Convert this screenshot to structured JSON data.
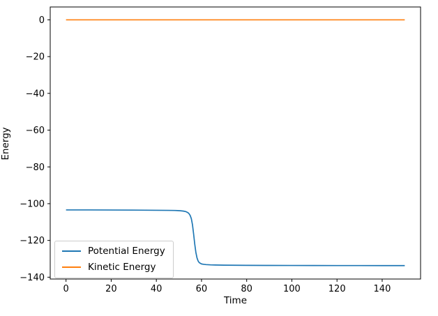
{
  "chart_data": {
    "type": "line",
    "title": "",
    "xlabel": "Time",
    "ylabel": "Energy",
    "xlim": [
      -7,
      157
    ],
    "ylim": [
      -141,
      7
    ],
    "grid": false,
    "legend_position": "lower left",
    "xticks": [
      {
        "value": 0,
        "label": "0"
      },
      {
        "value": 20,
        "label": "20"
      },
      {
        "value": 40,
        "label": "40"
      },
      {
        "value": 60,
        "label": "60"
      },
      {
        "value": 80,
        "label": "80"
      },
      {
        "value": 100,
        "label": "100"
      },
      {
        "value": 120,
        "label": "120"
      },
      {
        "value": 140,
        "label": "140"
      }
    ],
    "yticks": [
      {
        "value": 0,
        "label": "0"
      },
      {
        "value": -20,
        "label": "−20"
      },
      {
        "value": -40,
        "label": "−40"
      },
      {
        "value": -60,
        "label": "−60"
      },
      {
        "value": -80,
        "label": "−80"
      },
      {
        "value": -100,
        "label": "−100"
      },
      {
        "value": -120,
        "label": "−120"
      },
      {
        "value": -140,
        "label": "−140"
      }
    ],
    "series": [
      {
        "name": "Potential Energy",
        "color": "#1f77b4",
        "points": [
          [
            0,
            -103.4
          ],
          [
            10,
            -103.4
          ],
          [
            20,
            -103.45
          ],
          [
            30,
            -103.5
          ],
          [
            40,
            -103.6
          ],
          [
            45,
            -103.65
          ],
          [
            48,
            -103.7
          ],
          [
            50,
            -103.8
          ],
          [
            51,
            -103.9
          ],
          [
            52,
            -104.05
          ],
          [
            53,
            -104.3
          ],
          [
            54,
            -104.9
          ],
          [
            54.5,
            -105.5
          ],
          [
            55,
            -106.5
          ],
          [
            55.5,
            -108.2
          ],
          [
            56,
            -111.5
          ],
          [
            56.5,
            -116.5
          ],
          [
            57,
            -122
          ],
          [
            57.5,
            -126.5
          ],
          [
            58,
            -129.5
          ],
          [
            58.5,
            -131.2
          ],
          [
            59,
            -132.1
          ],
          [
            60,
            -132.8
          ],
          [
            61,
            -133.0
          ],
          [
            62,
            -133.15
          ],
          [
            64,
            -133.3
          ],
          [
            66,
            -133.35
          ],
          [
            70,
            -133.45
          ],
          [
            75,
            -133.5
          ],
          [
            80,
            -133.55
          ],
          [
            90,
            -133.6
          ],
          [
            100,
            -133.62
          ],
          [
            110,
            -133.65
          ],
          [
            120,
            -133.67
          ],
          [
            130,
            -133.68
          ],
          [
            140,
            -133.7
          ],
          [
            150,
            -133.7
          ]
        ]
      },
      {
        "name": "Kinetic Energy",
        "color": "#ff7f0e",
        "points": [
          [
            0,
            0
          ],
          [
            30,
            0
          ],
          [
            60,
            0
          ],
          [
            90,
            0
          ],
          [
            120,
            0
          ],
          [
            150,
            0
          ]
        ]
      }
    ]
  }
}
